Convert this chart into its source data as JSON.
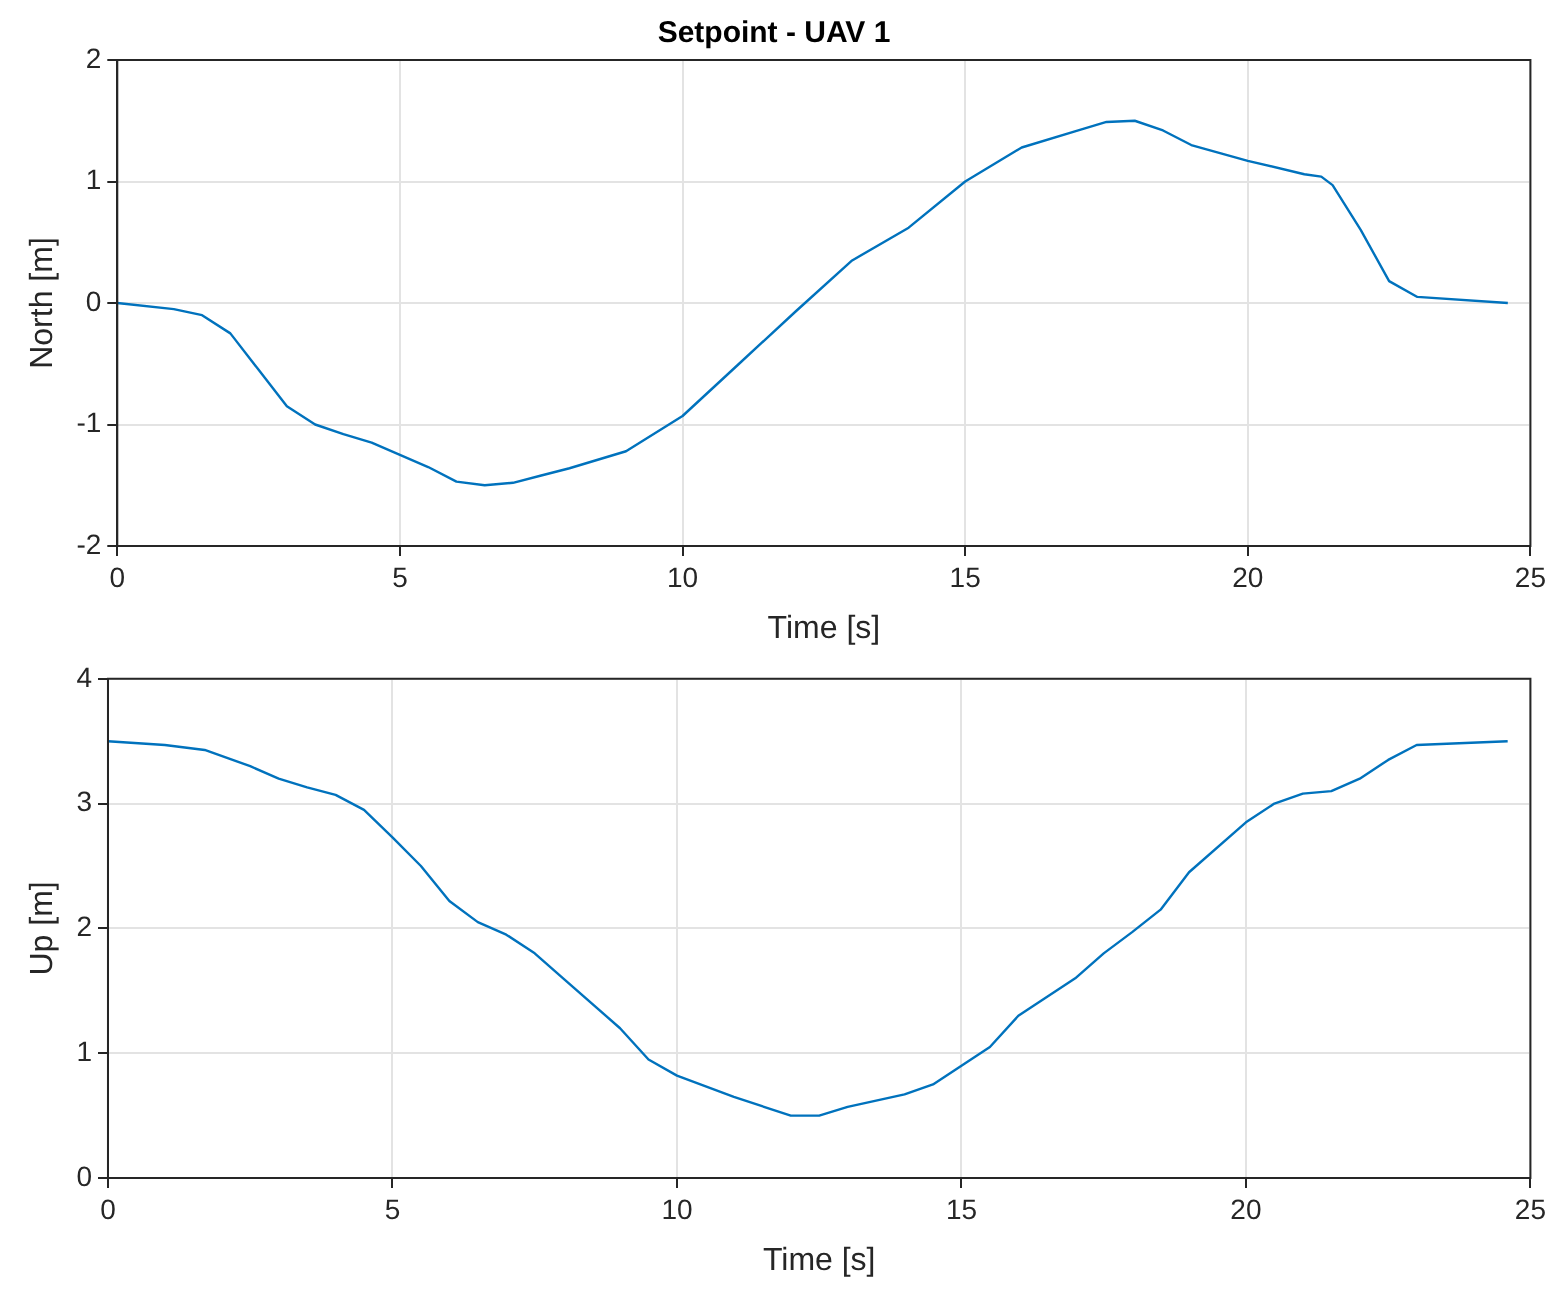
{
  "chart_data": [
    {
      "type": "line",
      "title": "Setpoint - UAV 1",
      "xlabel": "Time [s]",
      "ylabel": "North [m]",
      "xlim": [
        0,
        25
      ],
      "xticks": [
        0,
        5,
        10,
        15,
        20,
        25
      ],
      "ylim": [
        -2,
        2
      ],
      "yticks": [
        -2,
        -1,
        0,
        1,
        2
      ],
      "grid": true,
      "line_style": "solid",
      "marker": "none",
      "series": [
        {
          "color": "#0072bd",
          "x": [
            0,
            1,
            1.5,
            2,
            2.5,
            3,
            3.5,
            4,
            4.5,
            5,
            5.5,
            6,
            6.5,
            7,
            7.5,
            8,
            9,
            10,
            11,
            12,
            13,
            14,
            15,
            16,
            17,
            17.5,
            18,
            18.5,
            19,
            20,
            21,
            21.3,
            21.5,
            22,
            22.5,
            23,
            24.6
          ],
          "values": [
            0,
            -0.05,
            -0.1,
            -0.25,
            -0.55,
            -0.85,
            -1.0,
            -1.08,
            -1.15,
            -1.25,
            -1.35,
            -1.47,
            -1.5,
            -1.48,
            -1.42,
            -1.36,
            -1.22,
            -0.93,
            -0.5,
            -0.07,
            0.35,
            0.62,
            1.0,
            1.28,
            1.42,
            1.49,
            1.5,
            1.42,
            1.3,
            1.17,
            1.06,
            1.04,
            0.97,
            0.6,
            0.18,
            0.05,
            0
          ]
        }
      ]
    },
    {
      "type": "line",
      "xlabel": "Time [s]",
      "ylabel": "Up [m]",
      "xlim": [
        0,
        25
      ],
      "xticks": [
        0,
        5,
        10,
        15,
        20,
        25
      ],
      "ylim": [
        0,
        4
      ],
      "yticks": [
        0,
        1,
        2,
        3,
        4
      ],
      "grid": true,
      "line_style": "solid",
      "marker": "none",
      "series": [
        {
          "color": "#0072bd",
          "x": [
            0,
            1,
            1.7,
            2.5,
            3,
            3.5,
            4,
            4.5,
            5,
            5.5,
            6,
            6.5,
            7,
            7.5,
            8,
            9,
            9.5,
            10,
            11,
            12,
            12.5,
            13,
            14,
            14.5,
            15,
            15.5,
            16,
            17,
            17.5,
            18,
            18.5,
            19,
            20,
            20.5,
            21,
            21.5,
            22,
            22.5,
            23,
            24.6
          ],
          "values": [
            3.5,
            3.47,
            3.43,
            3.3,
            3.2,
            3.13,
            3.07,
            2.95,
            2.73,
            2.5,
            2.22,
            2.05,
            1.95,
            1.8,
            1.6,
            1.2,
            0.95,
            0.82,
            0.65,
            0.5,
            0.5,
            0.57,
            0.67,
            0.75,
            0.9,
            1.05,
            1.3,
            1.6,
            1.8,
            1.97,
            2.15,
            2.45,
            2.85,
            3.0,
            3.08,
            3.1,
            3.2,
            3.35,
            3.47,
            3.5
          ]
        }
      ]
    }
  ]
}
